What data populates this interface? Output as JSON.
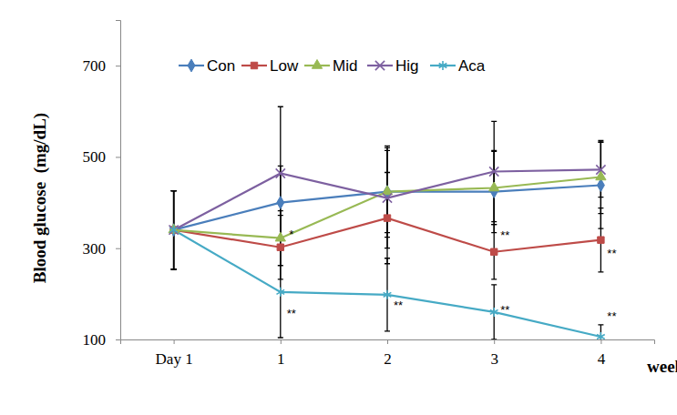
{
  "chart_data": {
    "type": "line",
    "x_label": "week",
    "y_label": "Blood glucose  (mg/dL)",
    "categories": [
      "Day 1",
      "1",
      "2",
      "3",
      "4"
    ],
    "ylim": [
      100,
      800
    ],
    "yticks": [
      100,
      300,
      500,
      700
    ],
    "grid": false,
    "legend": "top",
    "series": [
      {
        "name": "Con",
        "color": "#4a7ebb",
        "marker": "diamond",
        "values": [
          340,
          400,
          424,
          424,
          438
        ],
        "errors": [
          86,
          80,
          90,
          90,
          95
        ]
      },
      {
        "name": "Low",
        "color": "#be4b48",
        "marker": "square",
        "values": [
          340,
          302,
          366,
          292,
          318
        ],
        "errors": [
          86,
          70,
          100,
          60,
          70
        ]
      },
      {
        "name": "Mid",
        "color": "#98b954",
        "marker": "triangle",
        "values": [
          340,
          322,
          424,
          432,
          456
        ],
        "errors": [
          86,
          60,
          100,
          80,
          80
        ]
      },
      {
        "name": "Hig",
        "color": "#7d60a0",
        "marker": "x",
        "values": [
          340,
          464,
          410,
          468,
          472
        ],
        "errors": [
          86,
          146,
          110,
          110,
          60
        ]
      },
      {
        "name": "Aca",
        "color": "#46aac5",
        "marker": "asterisk",
        "values": [
          340,
          204,
          198,
          160,
          106
        ],
        "errors": [
          86,
          100,
          80,
          60,
          26
        ]
      }
    ],
    "annotations": [
      {
        "text": "*",
        "category": "1",
        "y": 322
      },
      {
        "text": "**",
        "category": "1",
        "y": 148
      },
      {
        "text": "**",
        "category": "2",
        "y": 166
      },
      {
        "text": "**",
        "category": "3",
        "y": 156
      },
      {
        "text": "**",
        "category": "4",
        "y": 142
      },
      {
        "text": "**",
        "category": "3",
        "y": 320
      },
      {
        "text": "**",
        "category": "4",
        "y": 280
      }
    ]
  }
}
